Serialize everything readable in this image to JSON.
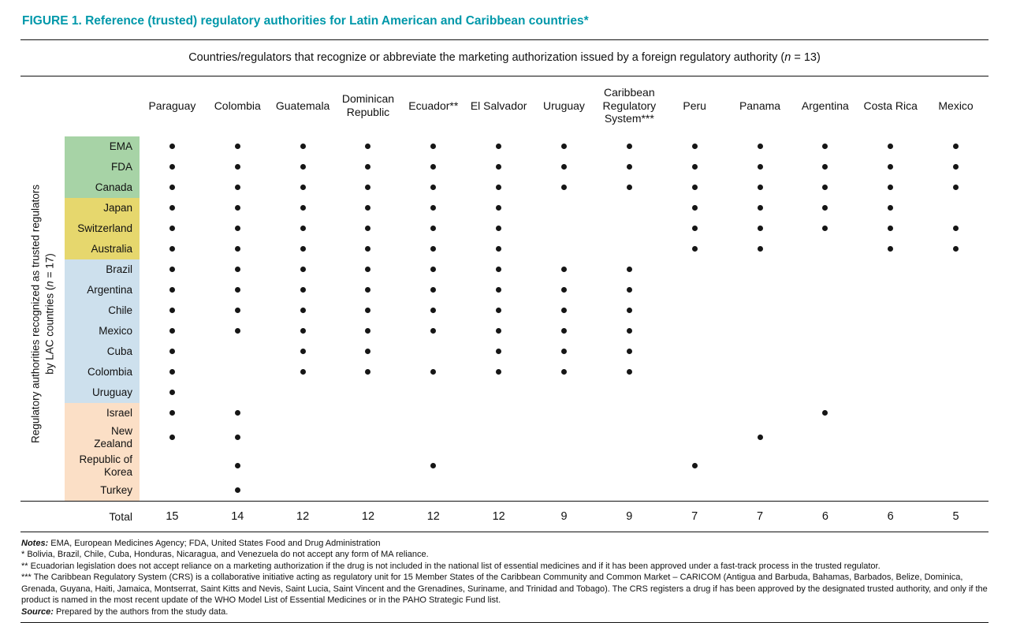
{
  "title": "FIGURE 1. Reference (trusted) regulatory authorities for Latin American and Caribbean countries*",
  "caption": {
    "prefix": "Countries/regulators that recognize or abbreviate the marketing authorization issued by a foreign regulatory authority (",
    "n": "n",
    "suffix": " = 13)"
  },
  "row_axis": {
    "prefix": "Regulatory authorities recognized as trusted regulators by LAC countries (",
    "n": "n",
    "suffix": " = 17)"
  },
  "chart_data": {
    "type": "table",
    "subtype": "dot-matrix",
    "columns": [
      "Paraguay",
      "Colombia",
      "Guatemala",
      "Dominican Republic",
      "Ecuador**",
      "El Salvador",
      "Uruguay",
      "Caribbean Regulatory System***",
      "Peru",
      "Panama",
      "Argentina",
      "Costa Rica",
      "Mexico"
    ],
    "rows": [
      {
        "label": "EMA",
        "group": "green",
        "dots": [
          1,
          1,
          1,
          1,
          1,
          1,
          1,
          1,
          1,
          1,
          1,
          1,
          1
        ]
      },
      {
        "label": "FDA",
        "group": "green",
        "dots": [
          1,
          1,
          1,
          1,
          1,
          1,
          1,
          1,
          1,
          1,
          1,
          1,
          1
        ]
      },
      {
        "label": "Canada",
        "group": "green",
        "dots": [
          1,
          1,
          1,
          1,
          1,
          1,
          1,
          1,
          1,
          1,
          1,
          1,
          1
        ]
      },
      {
        "label": "Japan",
        "group": "yellow",
        "dots": [
          1,
          1,
          1,
          1,
          1,
          1,
          0,
          0,
          1,
          1,
          1,
          1,
          0
        ]
      },
      {
        "label": "Switzerland",
        "group": "yellow",
        "dots": [
          1,
          1,
          1,
          1,
          1,
          1,
          0,
          0,
          1,
          1,
          1,
          1,
          1
        ]
      },
      {
        "label": "Australia",
        "group": "yellow",
        "dots": [
          1,
          1,
          1,
          1,
          1,
          1,
          0,
          0,
          1,
          1,
          0,
          1,
          1
        ]
      },
      {
        "label": "Brazil",
        "group": "blue",
        "dots": [
          1,
          1,
          1,
          1,
          1,
          1,
          1,
          1,
          0,
          0,
          0,
          0,
          0
        ]
      },
      {
        "label": "Argentina",
        "group": "blue",
        "dots": [
          1,
          1,
          1,
          1,
          1,
          1,
          1,
          1,
          0,
          0,
          0,
          0,
          0
        ]
      },
      {
        "label": "Chile",
        "group": "blue",
        "dots": [
          1,
          1,
          1,
          1,
          1,
          1,
          1,
          1,
          0,
          0,
          0,
          0,
          0
        ]
      },
      {
        "label": "Mexico",
        "group": "blue",
        "dots": [
          1,
          1,
          1,
          1,
          1,
          1,
          1,
          1,
          0,
          0,
          0,
          0,
          0
        ]
      },
      {
        "label": "Cuba",
        "group": "blue",
        "dots": [
          1,
          0,
          1,
          1,
          0,
          1,
          1,
          1,
          0,
          0,
          0,
          0,
          0
        ]
      },
      {
        "label": "Colombia",
        "group": "blue",
        "dots": [
          1,
          0,
          1,
          1,
          1,
          1,
          1,
          1,
          0,
          0,
          0,
          0,
          0
        ]
      },
      {
        "label": "Uruguay",
        "group": "blue",
        "dots": [
          1,
          0,
          0,
          0,
          0,
          0,
          0,
          0,
          0,
          0,
          0,
          0,
          0
        ]
      },
      {
        "label": "Israel",
        "group": "peach",
        "dots": [
          1,
          1,
          0,
          0,
          0,
          0,
          0,
          0,
          0,
          0,
          1,
          0,
          0
        ]
      },
      {
        "label": "New\nZealand",
        "group": "peach",
        "dots": [
          1,
          1,
          0,
          0,
          0,
          0,
          0,
          0,
          0,
          1,
          0,
          0,
          0
        ]
      },
      {
        "label": "Republic of\nKorea",
        "group": "peach",
        "dots": [
          0,
          1,
          0,
          0,
          1,
          0,
          0,
          0,
          1,
          0,
          0,
          0,
          0
        ]
      },
      {
        "label": "Turkey",
        "group": "peach",
        "dots": [
          0,
          1,
          0,
          0,
          0,
          0,
          0,
          0,
          0,
          0,
          0,
          0,
          0
        ]
      }
    ],
    "total_label": "Total",
    "totals": [
      15,
      14,
      12,
      12,
      12,
      12,
      9,
      9,
      7,
      7,
      6,
      6,
      5
    ],
    "group_colors": {
      "green": "#a7d3a6",
      "yellow": "#e6d76d",
      "blue": "#cde0ed",
      "peach": "#fbdfc6"
    },
    "title": "Reference (trusted) regulatory authorities for Latin American and Caribbean countries",
    "dot_color": "#161616"
  },
  "footnotes": [
    {
      "lead": "Notes:",
      "text": " EMA, European Medicines Agency; FDA, United States Food and Drug Administration"
    },
    {
      "lead": "",
      "text": "* Bolivia, Brazil, Chile, Cuba, Honduras, Nicaragua, and Venezuela do not accept any form of MA reliance."
    },
    {
      "lead": "",
      "text": "** Ecuadorian legislation does not accept reliance on a marketing authorization if the drug is not included in the national list of essential medicines and if it has been approved under a fast-track process in the trusted regulator."
    },
    {
      "lead": "",
      "text": "*** The Caribbean Regulatory System (CRS) is a collaborative initiative acting as regulatory unit for 15 Member States of the Caribbean Community and Common Market – CARICOM (Antigua and Barbuda, Bahamas, Barbados, Belize, Dominica, Grenada, Guyana, Haiti, Jamaica, Montserrat, Saint Kitts and Nevis, Saint Lucia, Saint Vincent and the Grenadines, Suriname, and Trinidad and Tobago). The CRS registers a drug if has been approved by the designated trusted authority, and only if the product is named in the most recent update of the WHO Model List of Essential Medicines or in the PAHO Strategic Fund list."
    },
    {
      "lead": "Source:",
      "text": " Prepared by the authors from the study data."
    }
  ]
}
